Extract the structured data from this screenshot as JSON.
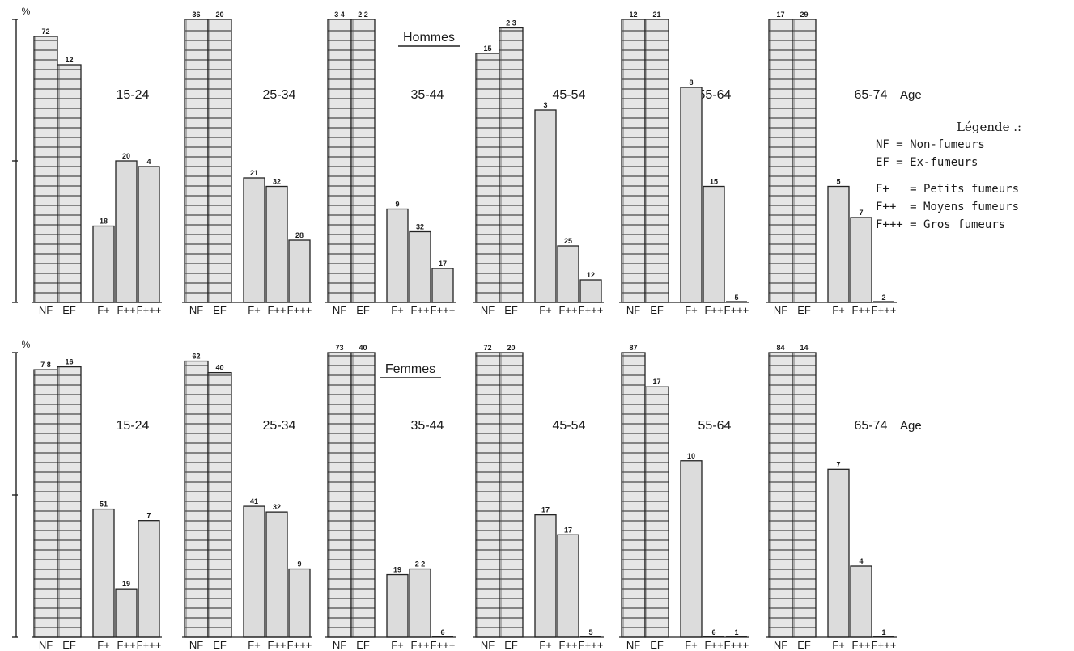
{
  "chart_data": {
    "type": "bar",
    "title": "",
    "y_axis_symbol": "%",
    "ylim": [
      0,
      100
    ],
    "categories": [
      "NF",
      "EF",
      "F+",
      "F++",
      "F+++"
    ],
    "category_tick_labels": [
      "NF",
      "EF",
      "F+",
      "F++",
      "F+++"
    ],
    "age_axis_label": "Age",
    "legend": {
      "title": "Légende .:",
      "entries": [
        "NF = Non-fumeurs",
        "EF = Ex-fumeurs",
        "F+   = Petits fumeurs",
        "F++  = Moyens fumeurs",
        "F+++ = Gros fumeurs"
      ],
      "placement": "right"
    },
    "panels": [
      {
        "name": "Hommes",
        "groups": [
          {
            "age": "15-24",
            "values": [
              94,
              84,
              27,
              50,
              48
            ],
            "labels": [
              "72",
              "12",
              "18",
              "20",
              "4"
            ]
          },
          {
            "age": "25-34",
            "values": [
              100,
              100,
              44,
              41,
              22
            ],
            "labels": [
              "36",
              "20",
              "21",
              "32",
              "28"
            ]
          },
          {
            "age": "35-44",
            "values": [
              100,
              100,
              33,
              25,
              12
            ],
            "labels": [
              "3 4",
              "2 2",
              "9",
              "32",
              "17"
            ]
          },
          {
            "age": "45-54",
            "values": [
              88,
              97,
              68,
              20,
              8
            ],
            "labels": [
              "15",
              "2 3",
              "3",
              "25",
              "12"
            ]
          },
          {
            "age": "55-64",
            "values": [
              100,
              100,
              76,
              41,
              0
            ],
            "labels": [
              "12",
              "21",
              "8",
              "15",
              "5"
            ]
          },
          {
            "age": "65-74",
            "values": [
              100,
              100,
              41,
              30,
              0
            ],
            "labels": [
              "17",
              "29",
              "5",
              "7",
              "2"
            ]
          }
        ]
      },
      {
        "name": "Femmes",
        "groups": [
          {
            "age": "15-24",
            "values": [
              94,
              95,
              45,
              17,
              41
            ],
            "labels": [
              "7 8",
              "16",
              "51",
              "19",
              "7"
            ]
          },
          {
            "age": "25-34",
            "values": [
              97,
              93,
              46,
              44,
              24
            ],
            "labels": [
              "62",
              "40",
              "41",
              "32",
              "9"
            ]
          },
          {
            "age": "35-44",
            "values": [
              100,
              100,
              22,
              24,
              0
            ],
            "labels": [
              "73",
              "40",
              "19",
              "2 2",
              "6"
            ]
          },
          {
            "age": "45-54",
            "values": [
              100,
              100,
              43,
              36,
              0
            ],
            "labels": [
              "72",
              "20",
              "17",
              "17",
              "5"
            ]
          },
          {
            "age": "55-64",
            "values": [
              100,
              88,
              62,
              0,
              0
            ],
            "labels": [
              "87",
              "17",
              "10",
              "6",
              "1"
            ]
          },
          {
            "age": "65-74",
            "values": [
              100,
              100,
              59,
              25,
              0
            ],
            "labels": [
              "84",
              "14",
              "7",
              "4",
              "1"
            ]
          }
        ]
      }
    ]
  }
}
